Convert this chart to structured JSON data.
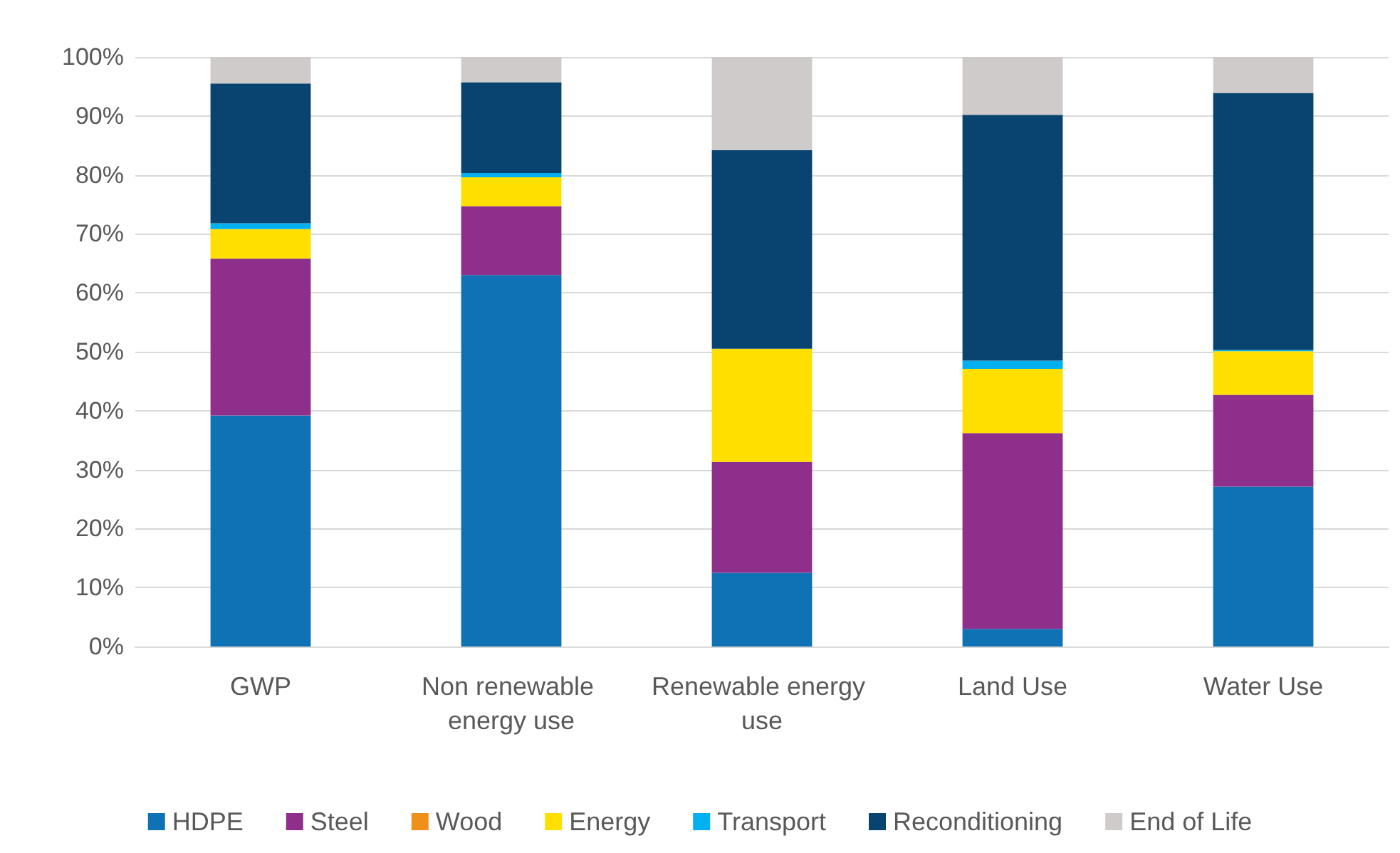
{
  "chart_data": {
    "type": "bar",
    "stacked": true,
    "categories": [
      "GWP",
      "Non renewable energy use",
      "Renewable energy use",
      "Land Use",
      "Water Use"
    ],
    "series": [
      {
        "name": "HDPE",
        "color": "#0e72b5",
        "values": [
          39.2,
          63.0,
          12.5,
          3.0,
          27.1
        ]
      },
      {
        "name": "Steel",
        "color": "#8e2f8c",
        "values": [
          26.6,
          11.7,
          18.8,
          33.2,
          15.6
        ]
      },
      {
        "name": "Wood",
        "color": "#f0901a",
        "values": [
          0,
          0,
          0,
          0,
          0
        ]
      },
      {
        "name": "Energy",
        "color": "#ffdf00",
        "values": [
          5.0,
          4.9,
          19.2,
          10.9,
          7.4
        ]
      },
      {
        "name": "Transport",
        "color": "#00b0f0",
        "values": [
          1.0,
          0.7,
          0,
          1.4,
          0.2
        ]
      },
      {
        "name": "Reconditioning",
        "color": "#08446f",
        "values": [
          23.7,
          15.4,
          33.7,
          41.7,
          43.6
        ]
      },
      {
        "name": "End of Life",
        "color": "#d0cbcb",
        "values": [
          4.5,
          4.3,
          15.8,
          9.8,
          6.1
        ]
      }
    ],
    "ylim": [
      0,
      100
    ],
    "yticks": [
      {
        "value": 0,
        "label": "0%"
      },
      {
        "value": 10,
        "label": "10%"
      },
      {
        "value": 20,
        "label": "20%"
      },
      {
        "value": 30,
        "label": "30%"
      },
      {
        "value": 40,
        "label": "40%"
      },
      {
        "value": 50,
        "label": "50%"
      },
      {
        "value": 60,
        "label": "60%"
      },
      {
        "value": 70,
        "label": "70%"
      },
      {
        "value": 80,
        "label": "80%"
      },
      {
        "value": 90,
        "label": "90%"
      },
      {
        "value": 100,
        "label": "100%"
      }
    ],
    "grid": "y",
    "legend": "bottom"
  }
}
